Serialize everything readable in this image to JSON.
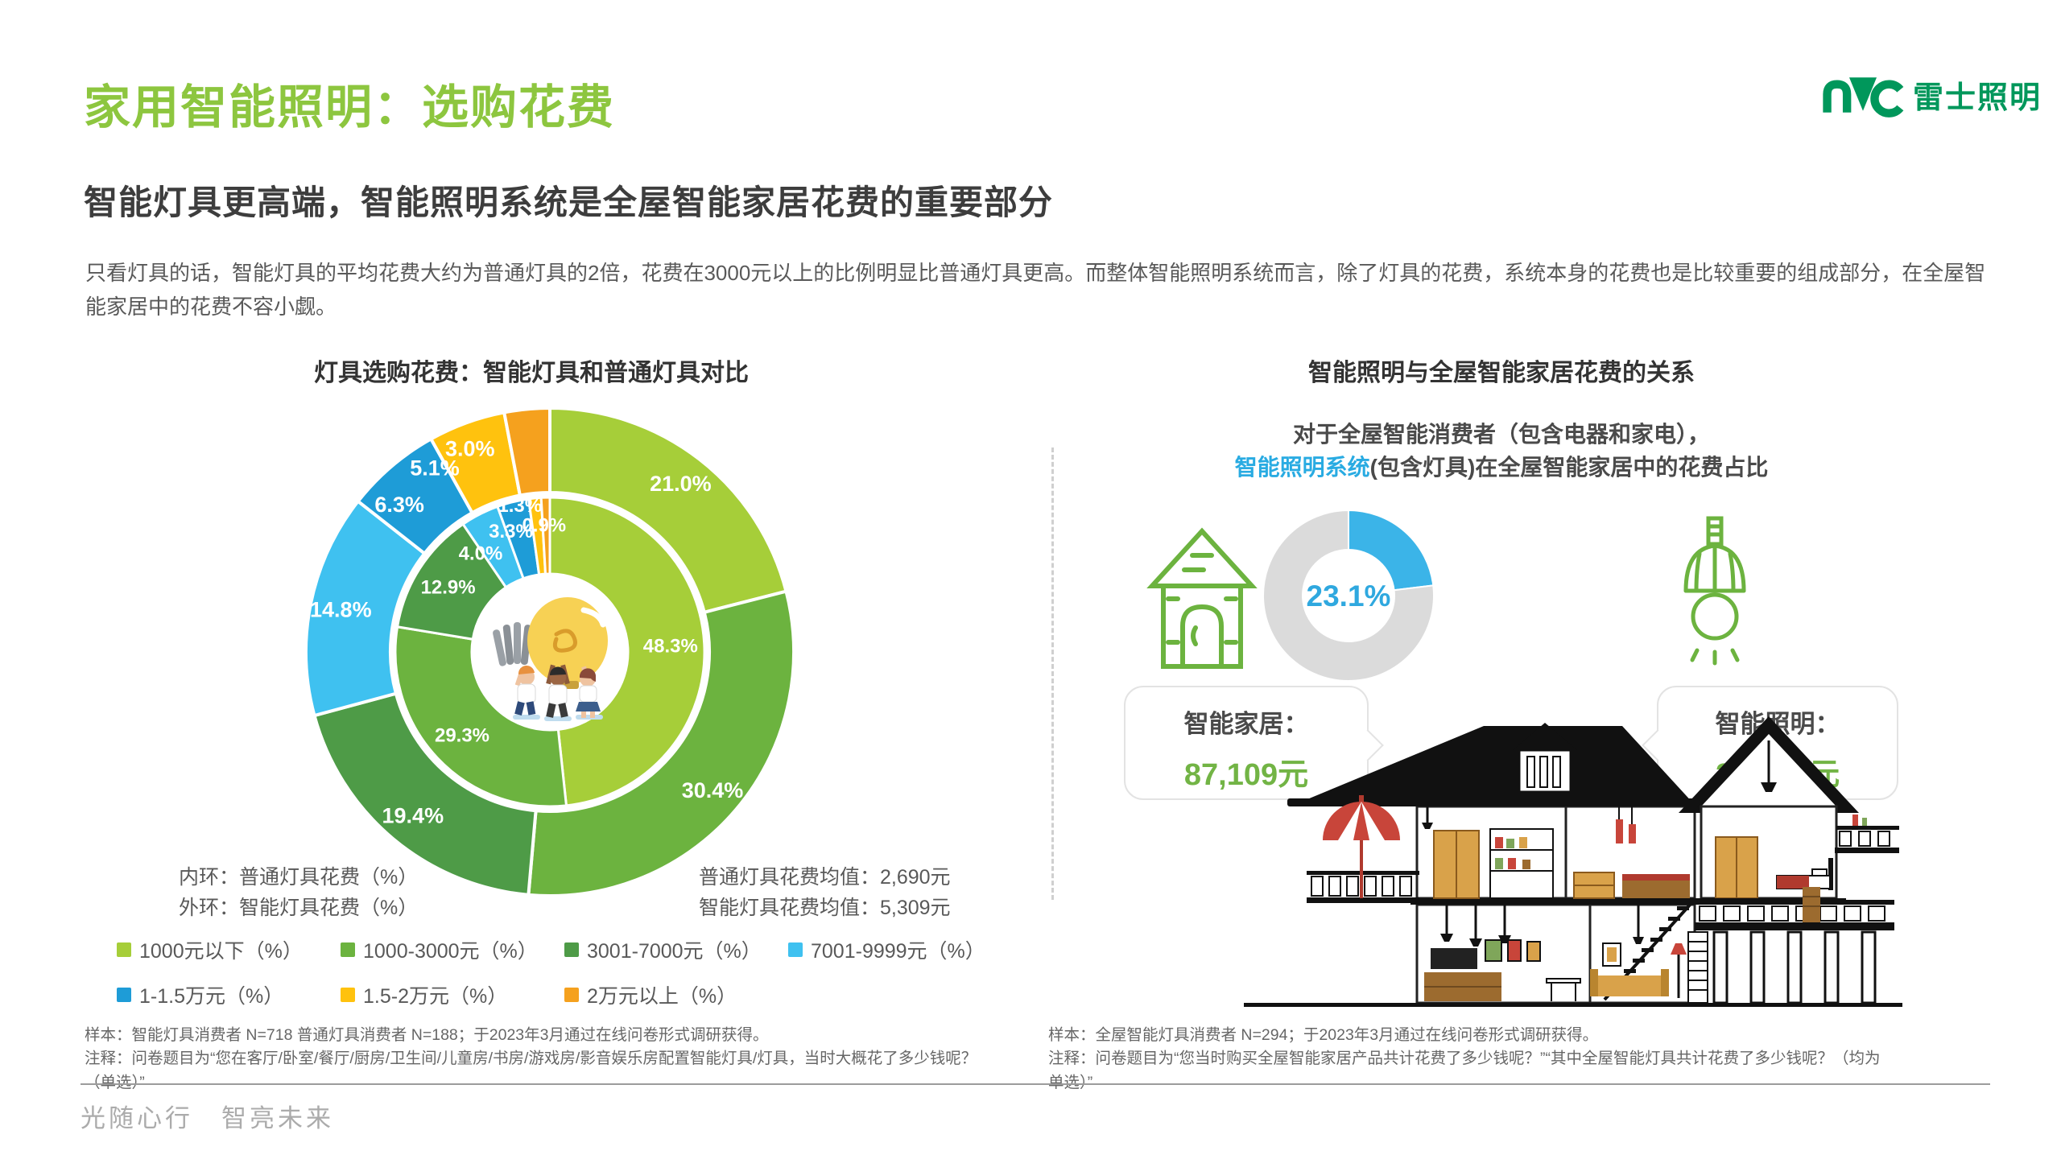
{
  "brand": {
    "name": "雷士照明"
  },
  "header": {
    "title": "家用智能照明：选购花费",
    "subtitle": "智能灯具更高端，智能照明系统是全屋智能家居花费的重要部分",
    "description": "只看灯具的话，智能灯具的平均花费大约为普通灯具的2倍，花费在3000元以上的比例明显比普通灯具更高。而整体智能照明系统而言，除了灯具的花费，系统本身的花费也是比较重要的组成部分，在全屋智能家居中的花费不容小觑。"
  },
  "chart_data": [
    {
      "type": "donut",
      "title": "灯具选购花费：智能灯具和普通灯具对比",
      "categories": [
        "1000元以下",
        "1000-3000元",
        "3001-7000元",
        "7001-9999元",
        "1-1.5万元",
        "1.5-2万元",
        "2万元以上"
      ],
      "colors": [
        "#A6CE39",
        "#6CB33F",
        "#4E9B47",
        "#3FC1F0",
        "#1E9CD7",
        "#FFC20E",
        "#F5A11E"
      ],
      "series": [
        {
          "name": "普通灯具花费",
          "ring": "inner",
          "values": [
            48.3,
            29.3,
            12.9,
            4.0,
            3.3,
            1.3,
            0.9
          ]
        },
        {
          "name": "智能灯具花费",
          "ring": "outer",
          "values": [
            21.0,
            30.4,
            19.4,
            14.8,
            6.3,
            5.1,
            3.0
          ]
        }
      ],
      "unit_suffix": "（%）",
      "ring_note_inner": "内环：普通灯具花费（%）",
      "ring_note_outer": "外环：智能灯具花费（%）",
      "avg_normal": "普通灯具花费均值：2,690元",
      "avg_smart": "智能灯具花费均值：5,309元",
      "legend_position": "bottom",
      "sample_note": "样本：智能灯具消费者 N=718  普通灯具消费者 N=188；于2023年3月通过在线问卷形式调研获得。",
      "question_note": "注释：问卷题目为“您在客厅/卧室/餐厅/厨房/卫生间/儿童房/书房/游戏房/影音娱乐房配置智能灯具/灯具，当时大概花了多少钱呢？（单选）”"
    },
    {
      "type": "donut",
      "title": "智能照明与全屋智能家居花费的关系",
      "subtitle_line1": "对于全屋智能消费者（包含电器和家电），",
      "subtitle_highlight": "智能照明系统",
      "subtitle_rest": "(包含灯具)在全屋智能家居中的花费占比",
      "values": [
        23.1,
        76.9
      ],
      "colors": [
        "#3BB4E8",
        "#DBDBDB"
      ],
      "callouts": [
        {
          "label": "智能家居：",
          "value": "87,109元"
        },
        {
          "label": "智能照明：",
          "value": "20,160元"
        }
      ],
      "sample_note": "样本：全屋智能灯具消费者 N=294；于2023年3月通过在线问卷形式调研获得。",
      "question_note": "注释：问卷题目为“您当时购买全屋智能家居产品共计花费了多少钱呢？”“其中全屋智能灯具共计花费了多少钱呢？（均为单选）”"
    }
  ],
  "footer": {
    "slogan": "光随心行　智亮未来"
  }
}
